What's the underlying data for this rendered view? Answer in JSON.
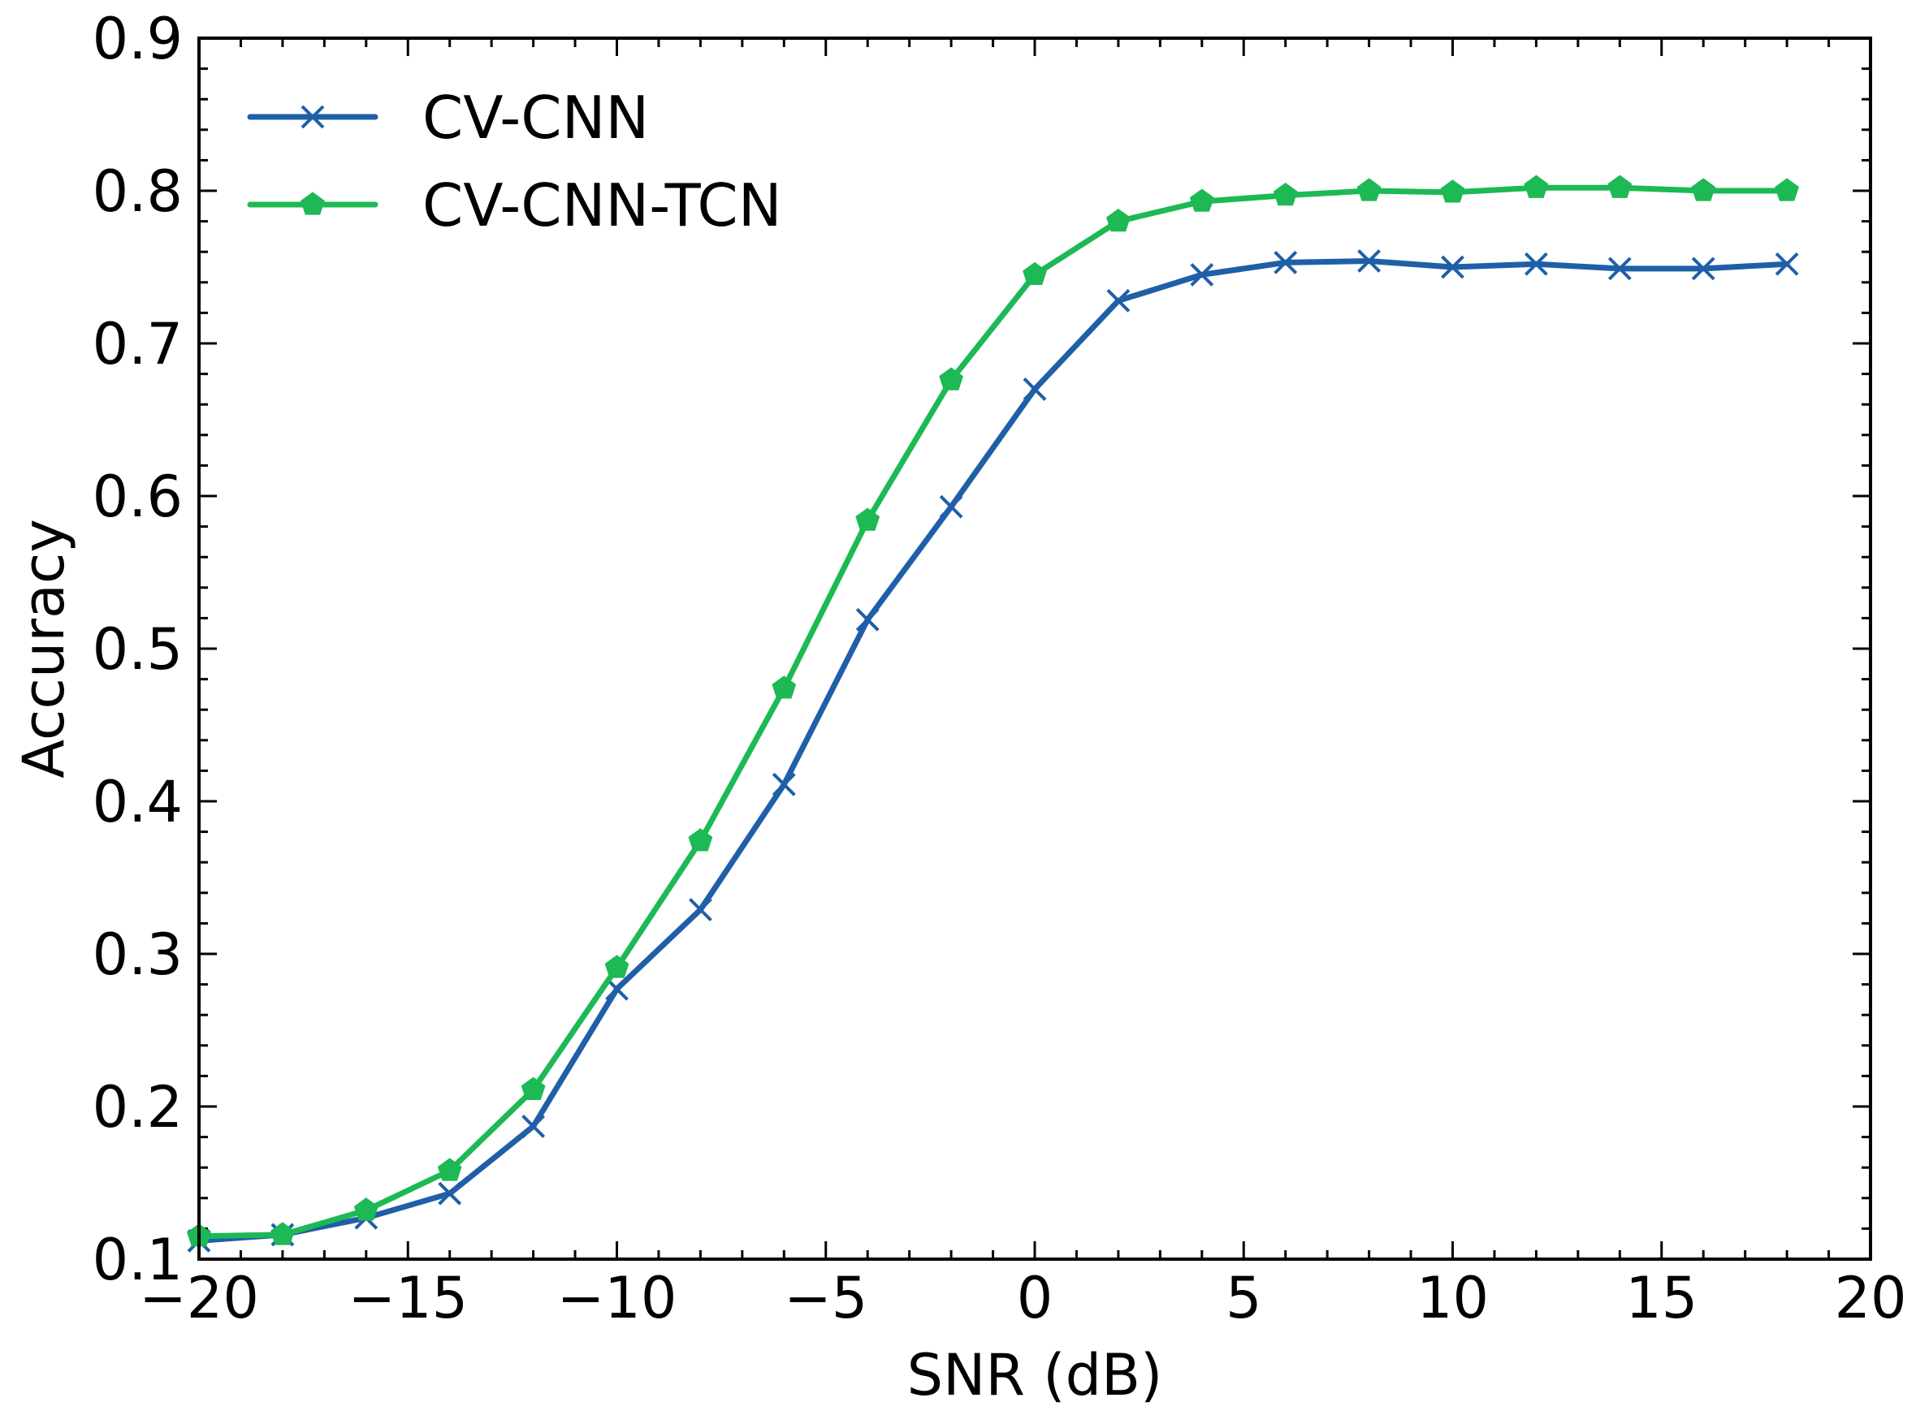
{
  "chart_data": {
    "type": "line",
    "xlabel": "SNR (dB)",
    "ylabel": "Accuracy",
    "xlim": [
      -20,
      20
    ],
    "ylim": [
      0.1,
      0.9
    ],
    "x_ticks": [
      -20,
      -15,
      -10,
      -5,
      0,
      5,
      10,
      15,
      20
    ],
    "x_tick_labels": [
      "−20",
      "−15",
      "−10",
      "−5",
      "0",
      "5",
      "10",
      "15",
      "20"
    ],
    "y_ticks": [
      0.1,
      0.2,
      0.3,
      0.4,
      0.5,
      0.6,
      0.7,
      0.8,
      0.9
    ],
    "y_tick_labels": [
      "0.1",
      "0.2",
      "0.3",
      "0.4",
      "0.5",
      "0.6",
      "0.7",
      "0.8",
      "0.9"
    ],
    "grid": false,
    "legend_position": "top-left",
    "x": [
      -20,
      -18,
      -16,
      -14,
      -12,
      -10,
      -8,
      -6,
      -4,
      -2,
      0,
      2,
      4,
      6,
      8,
      10,
      12,
      14,
      16,
      18
    ],
    "series": [
      {
        "name": "CV-CNN",
        "color": "#1f5fa8",
        "marker": "x",
        "values": [
          0.112,
          0.116,
          0.127,
          0.143,
          0.187,
          0.277,
          0.329,
          0.411,
          0.519,
          0.593,
          0.67,
          0.728,
          0.745,
          0.753,
          0.754,
          0.75,
          0.752,
          0.749,
          0.749,
          0.752
        ]
      },
      {
        "name": "CV-CNN-TCN",
        "color": "#1db954",
        "marker": "pentagon",
        "values": [
          0.115,
          0.116,
          0.132,
          0.158,
          0.211,
          0.291,
          0.374,
          0.474,
          0.584,
          0.676,
          0.745,
          0.78,
          0.793,
          0.797,
          0.8,
          0.799,
          0.802,
          0.802,
          0.8,
          0.8
        ]
      }
    ]
  }
}
